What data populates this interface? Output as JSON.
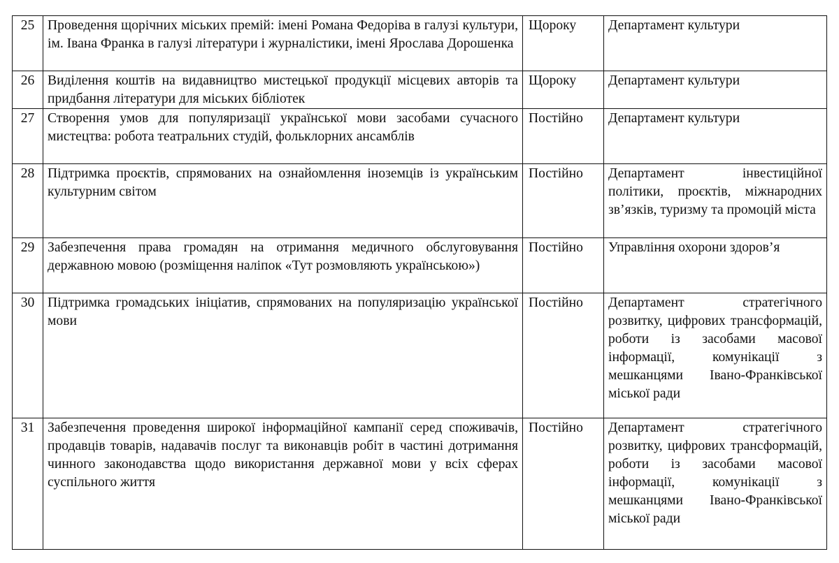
{
  "rows": [
    {
      "num": "25",
      "text": "Проведення щорічних міських премій: імені Романа Федоріва в галузі культури, ім. Івана Франка в галузі літератури і журналістики, імені Ярослава Дорошенка",
      "period": "Щороку",
      "executor": "Департамент культури"
    },
    {
      "num": "26",
      "text": "Виділення коштів на видавництво мистецької продукції місцевих авторів та придбання літератури для міських бібліотек",
      "period": "Щороку",
      "executor": "Департамент культури"
    },
    {
      "num": "27",
      "text": "Створення умов для популяризації української мови засобами сучасного мистецтва: робота театральних студій, фольклорних ансамблів",
      "period": "Постійно",
      "executor": "Департамент культури"
    },
    {
      "num": "28",
      "text": "Підтримка проєктів, спрямованих на ознайомлення іноземців із українським культурним світом",
      "period": "Постійно",
      "executor": "Департамент інвестиційної політики, проєктів, міжнародних зв’язків, туризму та промоцій міста"
    },
    {
      "num": "29",
      "text": "Забезпечення права громадян на отримання медичного обслуговування державною мовою (розміщення наліпок «Тут розмовляють українською»)",
      "period": "Постійно",
      "executor": "Управління охорони здоров’я"
    },
    {
      "num": "30",
      "text": "Підтримка громадських ініціатив, спрямованих на популяризацію української мови",
      "period": "Постійно",
      "executor": "Департамент стратегічного розвитку, цифрових трансформацій, роботи із засобами масової інформації, комунікації з мешканцями Івано-Франківської міської ради"
    },
    {
      "num": "31",
      "text": "Забезпечення проведення широкої інформаційної кампанії серед споживачів, продавців товарів, надавачів послуг та виконавців робіт в частині дотримання чинного законодавства щодо використання державної мови у всіх сферах суспільного життя",
      "period": "Постійно",
      "executor": "Департамент стратегічного розвитку, цифрових трансформацій, роботи із засобами масової інформації, комунікації з мешканцями Івано-Франківської міської ради"
    }
  ]
}
